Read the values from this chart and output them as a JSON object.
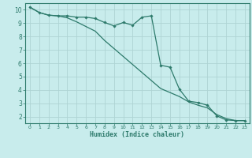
{
  "title": "",
  "xlabel": "Humidex (Indice chaleur)",
  "bg_color": "#c8ecec",
  "grid_color": "#aed4d4",
  "line_color": "#2d7a6b",
  "xlim": [
    -0.5,
    23.5
  ],
  "ylim": [
    1.5,
    10.5
  ],
  "yticks": [
    2,
    3,
    4,
    5,
    6,
    7,
    8,
    9,
    10
  ],
  "xticks": [
    0,
    1,
    2,
    3,
    4,
    5,
    6,
    7,
    8,
    9,
    10,
    11,
    12,
    13,
    14,
    15,
    16,
    17,
    18,
    19,
    20,
    21,
    22,
    23
  ],
  "line1_x": [
    0,
    1,
    2,
    3,
    4,
    5,
    6,
    7,
    8,
    9,
    10,
    11,
    12,
    13,
    14,
    15,
    16,
    17,
    18,
    19,
    20,
    21,
    22,
    23
  ],
  "line1_y": [
    10.2,
    9.8,
    9.6,
    9.55,
    9.55,
    9.45,
    9.45,
    9.35,
    9.05,
    8.8,
    9.05,
    8.85,
    9.45,
    9.55,
    5.85,
    5.7,
    4.05,
    3.15,
    3.05,
    2.85,
    2.05,
    1.75,
    1.7,
    1.7
  ],
  "line2_x": [
    0,
    1,
    2,
    3,
    4,
    5,
    6,
    7,
    8,
    9,
    10,
    11,
    12,
    13,
    14,
    15,
    16,
    17,
    18,
    19,
    20,
    21,
    22,
    23
  ],
  "line2_y": [
    10.2,
    9.8,
    9.6,
    9.55,
    9.4,
    9.1,
    8.75,
    8.4,
    7.7,
    7.1,
    6.5,
    5.9,
    5.3,
    4.7,
    4.1,
    3.8,
    3.5,
    3.1,
    2.85,
    2.65,
    2.15,
    1.85,
    1.7,
    1.7
  ]
}
